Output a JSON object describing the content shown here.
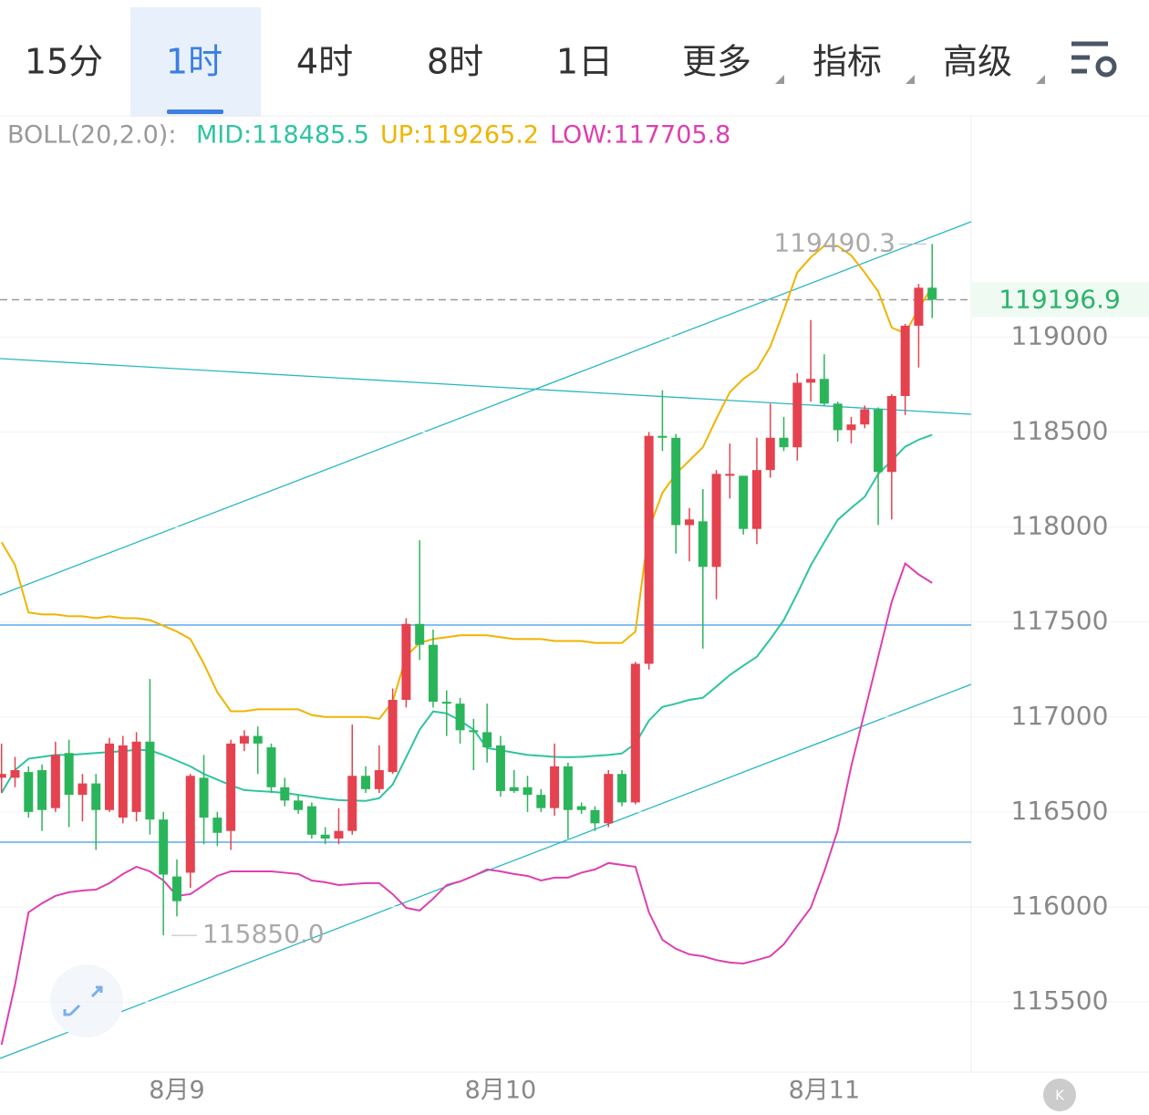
{
  "tabs": [
    "15分",
    "1时",
    "4时",
    "8时",
    "1日",
    "更多",
    "指标",
    "高级"
  ],
  "selected_tab": 1,
  "indicator": {
    "name": "BOLL(20,2.0):"
  },
  "chart_data": {
    "type": "candlestick",
    "categories": [
      null,
      null,
      null,
      null,
      null,
      null,
      null,
      null,
      null,
      null,
      null,
      null,
      null,
      "8月9",
      null,
      null,
      null,
      null,
      null,
      null,
      null,
      null,
      null,
      null,
      null,
      null,
      null,
      null,
      null,
      null,
      null,
      null,
      null,
      null,
      null,
      null,
      null,
      "8月10",
      null,
      null,
      null,
      null,
      null,
      null,
      null,
      null,
      null,
      null,
      null,
      null,
      null,
      null,
      null,
      null,
      null,
      null,
      null,
      null,
      null,
      null,
      null,
      "8月11",
      null,
      null,
      null,
      null,
      null,
      null,
      null,
      null
    ],
    "open": [
      116680,
      116680,
      116710,
      116720,
      116520,
      116810,
      116590,
      116650,
      116510,
      116470,
      116500,
      116870,
      116460,
      116160,
      116180,
      116680,
      116470,
      116400,
      116860,
      116900,
      116840,
      116630,
      116560,
      116530,
      116380,
      116360,
      116400,
      116690,
      116620,
      116710,
      117090,
      117490,
      117380,
      117080,
      117070,
      116930,
      116920,
      116850,
      116630,
      116630,
      116590,
      116520,
      116740,
      116530,
      116510,
      116440,
      116700,
      116550,
      117280,
      118480,
      118470,
      118010,
      118030,
      117790,
      118270,
      118270,
      117990,
      118300,
      118470,
      118420,
      118760,
      118780,
      118650,
      118510,
      118540,
      118620,
      118290,
      118690,
      119060,
      119260
    ],
    "high": [
      116860,
      116790,
      116740,
      116750,
      116870,
      116880,
      116700,
      116700,
      116890,
      116900,
      116920,
      117200,
      116500,
      116250,
      116700,
      116800,
      116500,
      116880,
      116930,
      116950,
      116860,
      116680,
      116590,
      116550,
      116420,
      116520,
      116960,
      116740,
      116850,
      117150,
      117520,
      117930,
      117460,
      117140,
      117100,
      116990,
      117070,
      116900,
      116720,
      116690,
      116620,
      116860,
      116760,
      116550,
      116530,
      116720,
      116720,
      117290,
      118500,
      118720,
      118490,
      118100,
      118200,
      118300,
      118440,
      118270,
      118470,
      118650,
      118580,
      118810,
      119090,
      118910,
      118660,
      118580,
      118640,
      118630,
      118700,
      119070,
      119280,
      119490.3
    ],
    "low": [
      116600,
      116630,
      116470,
      116400,
      116500,
      116420,
      116450,
      116300,
      116500,
      116440,
      116450,
      116380,
      115850,
      115950,
      116100,
      116330,
      116320,
      116300,
      116820,
      116700,
      116600,
      116530,
      116490,
      116360,
      116330,
      116330,
      116380,
      116600,
      116600,
      116700,
      117050,
      117300,
      117050,
      116900,
      116860,
      116720,
      116760,
      116580,
      116600,
      116500,
      116500,
      116480,
      116360,
      116490,
      116400,
      116420,
      116530,
      116540,
      117250,
      118400,
      117860,
      117820,
      117360,
      117620,
      118150,
      117960,
      117910,
      118260,
      118400,
      118350,
      118660,
      118640,
      118450,
      118440,
      118520,
      118010,
      118040,
      118590,
      118840,
      119100
    ],
    "close": [
      116700,
      116720,
      116500,
      116510,
      116800,
      116590,
      116650,
      116510,
      116860,
      116850,
      116870,
      116460,
      116170,
      116030,
      116690,
      116470,
      116390,
      116860,
      116900,
      116860,
      116630,
      116560,
      116510,
      116380,
      116360,
      116400,
      116690,
      116620,
      116720,
      117090,
      117490,
      117380,
      117080,
      117070,
      116930,
      116920,
      116840,
      116610,
      116610,
      116590,
      116520,
      116740,
      116510,
      116510,
      116440,
      116700,
      116550,
      117280,
      118480,
      118470,
      118010,
      118040,
      117790,
      118280,
      118280,
      117990,
      118300,
      118470,
      118420,
      118760,
      118780,
      118650,
      118510,
      118540,
      118620,
      118290,
      118690,
      119060,
      119260,
      119196.9
    ],
    "up_color": "#e5424f",
    "down_color": "#2bb55a",
    "series": [
      {
        "label": "MID:118485.5",
        "color": "#2ec4a0",
        "values": [
          116600,
          116720,
          116780,
          116790,
          116800,
          116800,
          116805,
          116810,
          116815,
          116820,
          116827,
          116825,
          116800,
          116770,
          116740,
          116700,
          116670,
          116640,
          116615,
          116610,
          116606,
          116600,
          116590,
          116580,
          116570,
          116562,
          116560,
          116558,
          116572,
          116644,
          116788,
          116933,
          117029,
          117019,
          116981,
          116933,
          116836,
          116825,
          116812,
          116800,
          116795,
          116790,
          116788,
          116790,
          116795,
          116800,
          116808,
          116860,
          116981,
          117053,
          117070,
          117090,
          117101,
          117160,
          117221,
          117270,
          117317,
          117410,
          117510,
          117650,
          117798,
          117920,
          118038,
          118100,
          118159,
          118279,
          118350,
          118423,
          118460,
          118485.5
        ]
      },
      {
        "label": "UP:119265.2",
        "color": "#f0b400",
        "values": [
          117920,
          117800,
          117550,
          117540,
          117540,
          117530,
          117530,
          117520,
          117530,
          117520,
          117520,
          117510,
          117480,
          117450,
          117410,
          117280,
          117130,
          117030,
          117030,
          117040,
          117040,
          117040,
          117040,
          117010,
          117000,
          117000,
          117000,
          117000,
          116990,
          117080,
          117320,
          117390,
          117410,
          117420,
          117430,
          117430,
          117430,
          117420,
          117410,
          117410,
          117410,
          117400,
          117400,
          117400,
          117390,
          117390,
          117390,
          117450,
          117990,
          118180,
          118280,
          118350,
          118420,
          118570,
          118710,
          118780,
          118830,
          118950,
          119140,
          119340,
          119420,
          119480,
          119480,
          119430,
          119340,
          119240,
          119050,
          119020,
          119150,
          119265.2
        ]
      },
      {
        "label": "LOW:117705.8",
        "color": "#dd3fb0",
        "values": [
          115274,
          115590,
          115971,
          116019,
          116058,
          116077,
          116086,
          116091,
          116125,
          116173,
          116211,
          116187,
          116139,
          116058,
          116067,
          116115,
          116163,
          116187,
          116187,
          116187,
          116187,
          116180,
          116173,
          116139,
          116130,
          116115,
          116120,
          116125,
          116125,
          116067,
          115995,
          115981,
          116043,
          116115,
          116134,
          116163,
          116197,
          116187,
          116173,
          116163,
          116139,
          116154,
          116154,
          116180,
          116197,
          116231,
          116221,
          116211,
          115971,
          115827,
          115779,
          115750,
          115740,
          115720,
          115707,
          115702,
          115720,
          115740,
          115803,
          115900,
          115995,
          116187,
          116404,
          116740,
          117029,
          117317,
          117606,
          117808,
          117750,
          117705.8
        ]
      }
    ],
    "ylim": [
      115130,
      120160
    ],
    "yticks": [
      115500,
      116000,
      116500,
      117000,
      117500,
      118000,
      118500,
      119000
    ],
    "last_price": 119196.9,
    "max_label": 119490.3,
    "min_label": {
      "value": 115850,
      "label": "115850.0"
    }
  }
}
